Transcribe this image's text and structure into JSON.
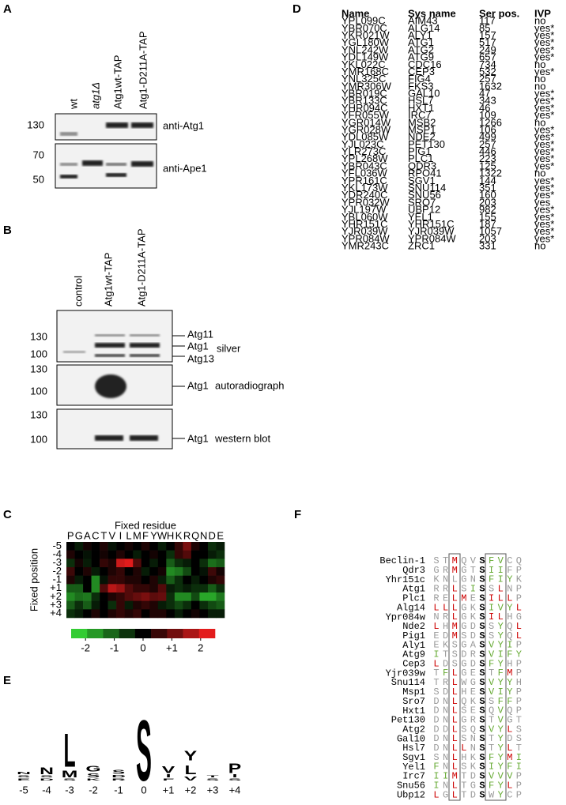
{
  "panel_a": {
    "label": "A",
    "lanes": [
      "wt",
      "atg1Δ",
      "Atg1wt-TAP",
      "Atg1-D211A-TAP"
    ],
    "blots": [
      {
        "markers": [
          130
        ],
        "label": "anti-Atg1"
      },
      {
        "markers": [
          70,
          50
        ],
        "label": "anti-Ape1"
      }
    ]
  },
  "panel_b": {
    "label": "B",
    "lanes": [
      "control",
      "Atg1wt-TAP",
      "Atg1-D211A-TAP"
    ],
    "blots": [
      {
        "markers": [
          130,
          100
        ],
        "bands": [
          "Atg11",
          "Atg1",
          "Atg13"
        ],
        "label": "silver"
      },
      {
        "markers": [
          130,
          100
        ],
        "bands": [
          "Atg1"
        ],
        "label": "autoradiograph"
      },
      {
        "markers": [
          130,
          100
        ],
        "bands": [
          "Atg1"
        ],
        "label": "western blot"
      }
    ]
  },
  "panel_c": {
    "label": "C",
    "type": "heatmap",
    "title": "Fixed residue",
    "ylabel": "Fixed position",
    "columns": [
      "P",
      "G",
      "A",
      "C",
      "T",
      "V",
      "I",
      "L",
      "M",
      "F",
      "Y",
      "W",
      "H",
      "K",
      "R",
      "Q",
      "N",
      "D",
      "E"
    ],
    "rows": [
      "-5",
      "-4",
      "-3",
      "-2",
      "-1",
      "+1",
      "+2",
      "+3",
      "+4"
    ],
    "values": [
      [
        0,
        -0.3,
        0.2,
        0,
        0.3,
        -0.2,
        0,
        0.2,
        0,
        0.3,
        0,
        -0.3,
        0,
        0.5,
        1.2,
        0.3,
        0,
        -0.5,
        -0.3
      ],
      [
        0.3,
        0,
        -0.2,
        0,
        0.2,
        0,
        0.3,
        0,
        -0.3,
        0,
        0.2,
        0,
        -0.5,
        0.5,
        0.8,
        0,
        0,
        -0.3,
        -0.5
      ],
      [
        -0.5,
        0.2,
        -0.3,
        0,
        0.5,
        0.3,
        2,
        2.2,
        0.8,
        0,
        -0.3,
        0,
        -1,
        -0.5,
        -0.3,
        0,
        -0.5,
        -1.2,
        -1
      ],
      [
        0.6,
        0,
        0.3,
        -0.3,
        0,
        0.3,
        0.5,
        0,
        0.3,
        -0.3,
        0,
        0.2,
        -1.5,
        -1.3,
        -0.8,
        0,
        -0.2,
        0.6,
        0.2
      ],
      [
        0.3,
        -0.3,
        0,
        -1.5,
        -0.2,
        0.5,
        0.5,
        0.3,
        0.3,
        0,
        0.3,
        -0.3,
        -1,
        -0.5,
        0,
        -0.3,
        0,
        0.3,
        0.5
      ],
      [
        -1,
        -1,
        0,
        -1.5,
        0.8,
        1.8,
        1.5,
        0.8,
        0.5,
        0.5,
        0.3,
        0.8,
        -0.3,
        -0.5,
        -0.3,
        -0.5,
        -0.5,
        -1,
        -0.5
      ],
      [
        -1.5,
        -1.2,
        -1.3,
        -0.5,
        0,
        0.3,
        0.5,
        0.8,
        1,
        1.2,
        0.9,
        1,
        -0.5,
        -1.5,
        -1.5,
        -0.8,
        -1.8,
        -1.8,
        -1.3
      ],
      [
        -1,
        -0.5,
        -1,
        -0.3,
        0,
        -0.5,
        0.5,
        -0.3,
        0.3,
        0.5,
        0.3,
        -0.3,
        -0.5,
        -0.8,
        -0.5,
        0,
        -0.5,
        -0.8,
        -1
      ],
      [
        -0.5,
        -0.3,
        0,
        0.3,
        0,
        0.3,
        0.5,
        0.3,
        0.5,
        0,
        0.3,
        0.3,
        0,
        -0.3,
        0,
        0.2,
        0,
        -0.3,
        -0.3
      ]
    ],
    "clim": [
      -2.5,
      2.5
    ],
    "cticks": [
      -2,
      -1,
      0,
      {
        "value": 1,
        "label": "+1"
      },
      2
    ],
    "colors": [
      "#39e639",
      "#000000",
      "#ff2020"
    ]
  },
  "panel_d": {
    "label": "D",
    "header": [
      "Name",
      "Sys name",
      "Ser pos.",
      "IVP"
    ],
    "rows": [
      {
        "name": "YPL099C",
        "sys_name": "AIM43",
        "ser_pos": 117,
        "ivp": "no",
        "color": "#000000"
      },
      {
        "name": "YBR070C",
        "sys_name": "ALG14",
        "ser_pos": 85,
        "ivp": "yes*",
        "color": "#4e9a2a"
      },
      {
        "name": "YKR021W",
        "sys_name": "ALY1",
        "ser_pos": 157,
        "ivp": "yes*",
        "color": "#4e9a2a"
      },
      {
        "name": "YGL180W",
        "sys_name": "ATG1",
        "ser_pos": 517,
        "ivp": "yes*",
        "color": "#4e9a2a"
      },
      {
        "name": "YNL242W",
        "sys_name": "ATG2",
        "ser_pos": 249,
        "ivp": "yes*",
        "color": "#4e9a2a"
      },
      {
        "name": "YDL149W",
        "sys_name": "ATG9",
        "ser_pos": 657,
        "ivp": "yes*",
        "color": "#4e9a2a"
      },
      {
        "name": "YKL022C",
        "sys_name": "CDC16",
        "ser_pos": 734,
        "ivp": "no",
        "color": "#000000"
      },
      {
        "name": "YMR168C",
        "sys_name": "CEP3",
        "ser_pos": 532,
        "ivp": "yes*",
        "color": "#4e9a2a"
      },
      {
        "name": "YNL325C",
        "sys_name": "FIG4",
        "ser_pos": 257,
        "ivp": "no",
        "color": "#000000"
      },
      {
        "name": "YMR306W",
        "sys_name": "FKS3",
        "ser_pos": 1632,
        "ivp": "no",
        "color": "#000000"
      },
      {
        "name": "YBR019C",
        "sys_name": "GAL10",
        "ser_pos": 47,
        "ivp": "yes*",
        "color": "#4e9a2a"
      },
      {
        "name": "YBR133C",
        "sys_name": "HSL7",
        "ser_pos": 343,
        "ivp": "yes*",
        "color": "#4e9a2a"
      },
      {
        "name": "YHR094C",
        "sys_name": "HXT1",
        "ser_pos": 46,
        "ivp": "yes*",
        "color": "#4e9a2a"
      },
      {
        "name": "YFR055W",
        "sys_name": "IRC7",
        "ser_pos": 109,
        "ivp": "yes*",
        "color": "#4e9a2a"
      },
      {
        "name": "YGR014W",
        "sys_name": "MSB2",
        "ser_pos": 1266,
        "ivp": "no",
        "color": "#000000"
      },
      {
        "name": "YGR028W",
        "sys_name": "MSP1",
        "ser_pos": 106,
        "ivp": "yes*",
        "color": "#4e9a2a"
      },
      {
        "name": "YDL085W",
        "sys_name": "NDE2",
        "ser_pos": 499,
        "ivp": "yes*",
        "color": "#4e9a2a"
      },
      {
        "name": "YJL023C",
        "sys_name": "PET130",
        "ser_pos": 257,
        "ivp": "yes*",
        "color": "#4e9a2a"
      },
      {
        "name": "YLR273C",
        "sys_name": "PIG1",
        "ser_pos": 446,
        "ivp": "yes*",
        "color": "#4e9a2a"
      },
      {
        "name": "YPL268W",
        "sys_name": "PLC1",
        "ser_pos": 223,
        "ivp": "yes*",
        "color": "#4e9a2a"
      },
      {
        "name": "YBR043C",
        "sys_name": "QDR3",
        "ser_pos": 125,
        "ivp": "yes*",
        "color": "#4e9a2a"
      },
      {
        "name": "YFL036W",
        "sys_name": "RPO41",
        "ser_pos": 1322,
        "ivp": "no",
        "color": "#000000"
      },
      {
        "name": "YPR161C",
        "sys_name": "SGV1",
        "ser_pos": 144,
        "ivp": "yes*",
        "color": "#4e9a2a"
      },
      {
        "name": "YKL173W",
        "sys_name": "SNU114",
        "ser_pos": 351,
        "ivp": "yes*",
        "color": "#4e9a2a"
      },
      {
        "name": "YDR240C",
        "sys_name": "SNU56",
        "ser_pos": 160,
        "ivp": "yes*",
        "color": "#4e9a2a"
      },
      {
        "name": "YPR032W",
        "sys_name": "SRO7",
        "ser_pos": 203,
        "ivp": "yes",
        "color": "#4e9a2a"
      },
      {
        "name": "YJL197W",
        "sys_name": "UBP12",
        "ser_pos": 982,
        "ivp": "yes*",
        "color": "#4e9a2a"
      },
      {
        "name": "YBL060W",
        "sys_name": "YEL1",
        "ser_pos": 155,
        "ivp": "yes*",
        "color": "#4e9a2a"
      },
      {
        "name": "YHR151C",
        "sys_name": "YHR151C",
        "ser_pos": 187,
        "ivp": "yes*",
        "color": "#4e9a2a"
      },
      {
        "name": "YJR039W",
        "sys_name": "YJR039W",
        "ser_pos": 1057,
        "ivp": "yes*",
        "color": "#4e9a2a"
      },
      {
        "name": "YPR084W",
        "sys_name": "YPR084W",
        "ser_pos": 203,
        "ivp": "yes*",
        "color": "#4e9a2a"
      },
      {
        "name": "YMR243C",
        "sys_name": "ZRC1",
        "ser_pos": 331,
        "ivp": "no",
        "color": "#000000"
      }
    ]
  },
  "panel_e": {
    "label": "E",
    "positions": [
      "-5",
      "-4",
      "-3",
      "-2",
      "-1",
      "0",
      "+1",
      "+2",
      "+3",
      "+4"
    ],
    "stacks": [
      [
        {
          "letter": "E",
          "color": "#d33",
          "height": 0.1
        },
        {
          "letter": "S",
          "color": "#3fb82e",
          "height": 0.1
        },
        {
          "letter": "N",
          "color": "#a0379a",
          "height": 0.12
        }
      ],
      [
        {
          "letter": "D",
          "color": "#d33",
          "height": 0.1
        },
        {
          "letter": "S",
          "color": "#3fb82e",
          "height": 0.1
        },
        {
          "letter": "N",
          "color": "#a0379a",
          "height": 0.35
        }
      ],
      [
        {
          "letter": "S",
          "color": "#3fb82e",
          "height": 0.1
        },
        {
          "letter": "M",
          "color": "#000",
          "height": 0.35
        },
        {
          "letter": "L",
          "color": "#000",
          "height": 1.7
        }
      ],
      [
        {
          "letter": "K",
          "color": "#3a3ab0",
          "height": 0.1
        },
        {
          "letter": "S",
          "color": "#3fb82e",
          "height": 0.2
        },
        {
          "letter": "G",
          "color": "#3fb82e",
          "height": 0.3
        }
      ],
      [
        {
          "letter": "R",
          "color": "#3a3ab0",
          "height": 0.1
        },
        {
          "letter": "D",
          "color": "#d33",
          "height": 0.12
        },
        {
          "letter": "S",
          "color": "#d33",
          "height": 0.2
        }
      ],
      [
        {
          "letter": "S",
          "color": "#3fb82e",
          "height": 3.1
        }
      ],
      [
        {
          "letter": "F",
          "color": "#000",
          "height": 0.1
        },
        {
          "letter": "I",
          "color": "#000",
          "height": 0.15
        },
        {
          "letter": "V",
          "color": "#000",
          "height": 0.35
        }
      ],
      [
        {
          "letter": "V",
          "color": "#000",
          "height": 0.2
        },
        {
          "letter": "L",
          "color": "#000",
          "height": 0.45
        },
        {
          "letter": "Y",
          "color": "#3fb82e",
          "height": 0.5
        }
      ],
      [
        {
          "letter": "S",
          "color": "#3fb82e",
          "height": 0.1
        },
        {
          "letter": "T",
          "color": "#3fb82e",
          "height": 0.1
        }
      ],
      [
        {
          "letter": "S",
          "color": "#3fb82e",
          "height": 0.1
        },
        {
          "letter": "I",
          "color": "#000",
          "height": 0.15
        },
        {
          "letter": "P",
          "color": "#000",
          "height": 0.5
        }
      ]
    ]
  },
  "panel_f": {
    "label": "F",
    "rows": [
      {
        "name": "Beclin-1",
        "sequence": "STMQVSFVCQ",
        "colors": [
          "#999",
          "#999",
          "#c00",
          "#999",
          "#999",
          "#000",
          "#6a3",
          "#6a3",
          "#999",
          "#999"
        ]
      },
      {
        "name": "Qdr3",
        "sequence": "GRMGTSIIFP",
        "colors": [
          "#999",
          "#999",
          "#c00",
          "#999",
          "#999",
          "#000",
          "#6a3",
          "#6a3",
          "#999",
          "#999"
        ]
      },
      {
        "name": "Yhr151c",
        "sequence": "KNLGNSFIYK",
        "colors": [
          "#999",
          "#999",
          "#999",
          "#999",
          "#999",
          "#000",
          "#6a3",
          "#6a3",
          "#6a3",
          "#999"
        ]
      },
      {
        "name": "Atg1",
        "sequence": "RRLSISSLNP",
        "colors": [
          "#999",
          "#999",
          "#c00",
          "#999",
          "#6a3",
          "#000",
          "#999",
          "#c00",
          "#999",
          "#999"
        ]
      },
      {
        "name": "Plc1",
        "sequence": "RELMESILLP",
        "colors": [
          "#999",
          "#999",
          "#c00",
          "#c00",
          "#999",
          "#000",
          "#c00",
          "#c00",
          "#c00",
          "#999"
        ]
      },
      {
        "name": "Alg14",
        "sequence": "LLLGKSIVYL",
        "colors": [
          "#c00",
          "#c00",
          "#c00",
          "#999",
          "#999",
          "#000",
          "#6a3",
          "#6a3",
          "#6a3",
          "#c00"
        ]
      },
      {
        "name": "Ypr084w",
        "sequence": "NRLGKSILHG",
        "colors": [
          "#999",
          "#999",
          "#c00",
          "#999",
          "#999",
          "#000",
          "#c00",
          "#c00",
          "#999",
          "#999"
        ]
      },
      {
        "name": "Nde2",
        "sequence": "LHMGDSSYQL",
        "colors": [
          "#c00",
          "#999",
          "#c00",
          "#999",
          "#999",
          "#000",
          "#999",
          "#6a3",
          "#999",
          "#c00"
        ]
      },
      {
        "name": "Pig1",
        "sequence": "EDMSDSSYQL",
        "colors": [
          "#999",
          "#999",
          "#c00",
          "#999",
          "#999",
          "#000",
          "#999",
          "#6a3",
          "#999",
          "#c00"
        ]
      },
      {
        "name": "Aly1",
        "sequence": "EKSGASVYIP",
        "colors": [
          "#999",
          "#999",
          "#999",
          "#999",
          "#999",
          "#000",
          "#6a3",
          "#6a3",
          "#6a3",
          "#999"
        ]
      },
      {
        "name": "Atg9",
        "sequence": "ITSDRSVIFY",
        "colors": [
          "#6a3",
          "#999",
          "#999",
          "#999",
          "#999",
          "#000",
          "#6a3",
          "#6a3",
          "#6a3",
          "#6a3"
        ]
      },
      {
        "name": "Cep3",
        "sequence": "LDSGDSFYHP",
        "colors": [
          "#c00",
          "#999",
          "#999",
          "#999",
          "#999",
          "#000",
          "#6a3",
          "#6a3",
          "#999",
          "#999"
        ]
      },
      {
        "name": "Yjr039w",
        "sequence": "TFLGESTFMP",
        "colors": [
          "#999",
          "#6a3",
          "#c00",
          "#999",
          "#999",
          "#000",
          "#999",
          "#6a3",
          "#c00",
          "#999"
        ]
      },
      {
        "name": "Snu114",
        "sequence": "TRLWGSVYYH",
        "colors": [
          "#999",
          "#999",
          "#c00",
          "#999",
          "#999",
          "#000",
          "#6a3",
          "#6a3",
          "#6a3",
          "#999"
        ]
      },
      {
        "name": "Msp1",
        "sequence": "SDLHESVIYP",
        "colors": [
          "#999",
          "#999",
          "#c00",
          "#999",
          "#999",
          "#000",
          "#6a3",
          "#6a3",
          "#6a3",
          "#999"
        ]
      },
      {
        "name": "Sro7",
        "sequence": "DNLQKSSFFP",
        "colors": [
          "#999",
          "#999",
          "#c00",
          "#999",
          "#999",
          "#000",
          "#999",
          "#6a3",
          "#6a3",
          "#999"
        ]
      },
      {
        "name": "Hxt1",
        "sequence": "DNLSESQVQP",
        "colors": [
          "#999",
          "#999",
          "#c00",
          "#999",
          "#999",
          "#000",
          "#999",
          "#6a3",
          "#999",
          "#999"
        ]
      },
      {
        "name": "Pet130",
        "sequence": "DNLGRSTVGT",
        "colors": [
          "#999",
          "#999",
          "#c00",
          "#999",
          "#999",
          "#000",
          "#999",
          "#6a3",
          "#999",
          "#999"
        ]
      },
      {
        "name": "Atg2",
        "sequence": "DDLSQSVYLS",
        "colors": [
          "#999",
          "#999",
          "#c00",
          "#999",
          "#999",
          "#000",
          "#6a3",
          "#6a3",
          "#c00",
          "#999"
        ]
      },
      {
        "name": "Gal10",
        "sequence": "DNLSNSTYDS",
        "colors": [
          "#999",
          "#999",
          "#c00",
          "#999",
          "#999",
          "#000",
          "#999",
          "#6a3",
          "#999",
          "#999"
        ]
      },
      {
        "name": "Hsl7",
        "sequence": "DNLLNSTYLT",
        "colors": [
          "#999",
          "#999",
          "#c00",
          "#c00",
          "#999",
          "#000",
          "#999",
          "#6a3",
          "#c00",
          "#999"
        ]
      },
      {
        "name": "Sgv1",
        "sequence": "SNLHKSFYMI",
        "colors": [
          "#999",
          "#999",
          "#c00",
          "#999",
          "#999",
          "#000",
          "#6a3",
          "#6a3",
          "#c00",
          "#6a3"
        ]
      },
      {
        "name": "Yel1",
        "sequence": "FNLSKSIYFI",
        "colors": [
          "#6a3",
          "#999",
          "#c00",
          "#999",
          "#999",
          "#000",
          "#6a3",
          "#6a3",
          "#6a3",
          "#6a3"
        ]
      },
      {
        "name": "Irc7",
        "sequence": "IIMTDSVVVP",
        "colors": [
          "#6a3",
          "#6a3",
          "#c00",
          "#999",
          "#999",
          "#000",
          "#6a3",
          "#6a3",
          "#6a3",
          "#999"
        ]
      },
      {
        "name": "Snu56",
        "sequence": "INLTGSFYLP",
        "colors": [
          "#6a3",
          "#999",
          "#c00",
          "#999",
          "#999",
          "#000",
          "#6a3",
          "#6a3",
          "#c00",
          "#999"
        ]
      },
      {
        "name": "Ubp12",
        "sequence": "LGLTDSWYCP",
        "colors": [
          "#c00",
          "#999",
          "#c00",
          "#999",
          "#999",
          "#000",
          "#999",
          "#6a3",
          "#999",
          "#999"
        ]
      }
    ]
  }
}
